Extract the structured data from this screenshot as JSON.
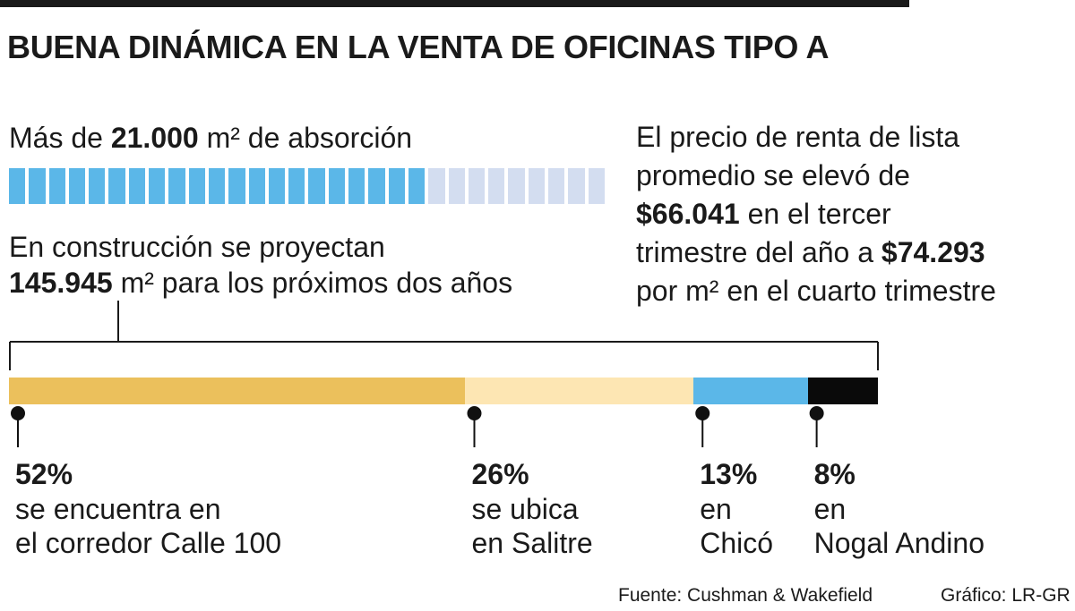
{
  "title": "BUENA DINÁMICA EN LA VENTA DE OFICINAS TIPO A",
  "absorption": {
    "prefix": "Más de ",
    "value": "21.000",
    "suffix": " m² de absorción",
    "blocks_total": 30,
    "blocks_filled": 21,
    "filled_color": "#5bb7e8",
    "empty_color": "#d3ddf0"
  },
  "construction": {
    "line1": "En construcción se proyectan",
    "value": "145.945",
    "suffix": " m² para los próximos dos años"
  },
  "price": {
    "line1": "El precio de renta de lista",
    "line2": "promedio se elevó de",
    "value1": "$66.041",
    "line3_rest": " en el tercer",
    "line4_start": "trimestre del año a ",
    "value2": "$74.293",
    "line5": "por m² en el cuarto trimestre"
  },
  "chart_data": {
    "type": "bar",
    "orientation": "horizontal-stacked",
    "categories": [
      "se encuentra en el corredor Calle 100",
      "se ubica en Salitre",
      "en Chicó",
      "en Nogal Andino"
    ],
    "values": [
      52,
      26,
      13,
      8
    ],
    "segments": [
      {
        "pct_label": "52%",
        "desc1": "se encuentra en",
        "desc2": "el corredor Calle 100",
        "value": 52,
        "color": "#ebc05c"
      },
      {
        "pct_label": "26%",
        "desc1": "se ubica",
        "desc2": "en Salitre",
        "value": 26,
        "color": "#fde6b3"
      },
      {
        "pct_label": "13%",
        "desc1": "en",
        "desc2": "Chicó",
        "value": 13,
        "color": "#5bb7e8"
      },
      {
        "pct_label": "8%",
        "desc1": "en",
        "desc2": "Nogal Andino",
        "value": 8,
        "color": "#0a0a0a"
      }
    ]
  },
  "footer": {
    "source": "Fuente: Cushman & Wakefield",
    "credit": "Gráfico: LR-GR"
  }
}
